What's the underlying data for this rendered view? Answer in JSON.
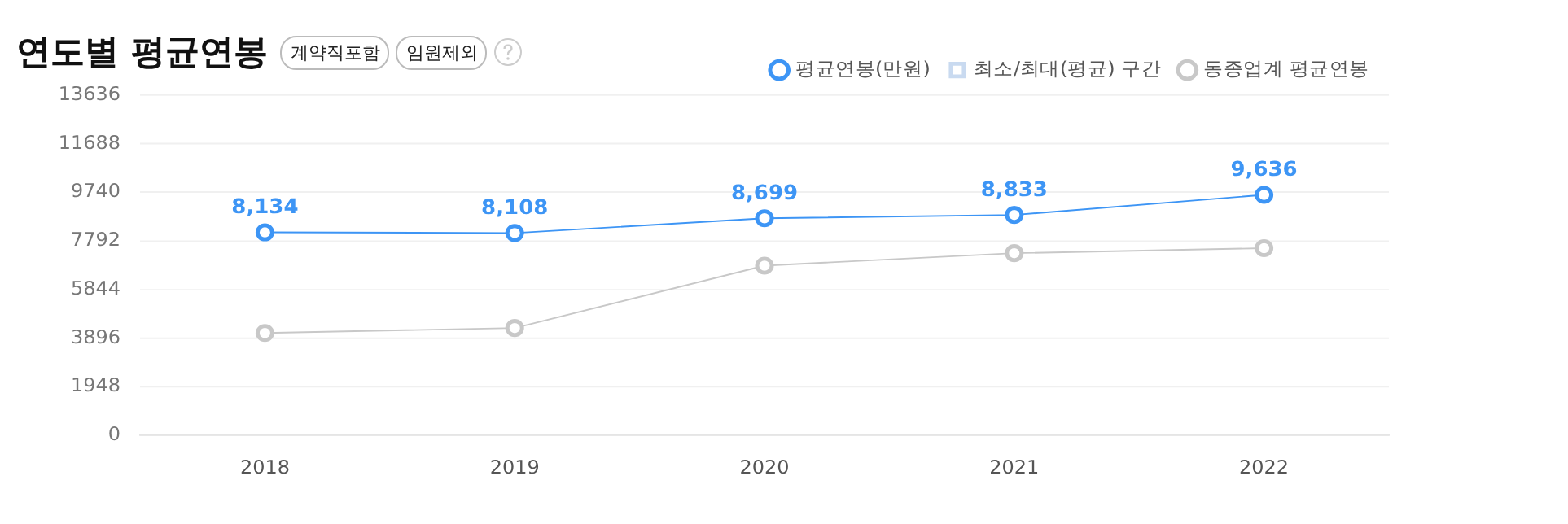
{
  "chart_data": {
    "type": "line",
    "title": "연도별 평균연봉",
    "annotations": [
      "계약직포함",
      "임원제외"
    ],
    "categories": [
      "2018",
      "2019",
      "2020",
      "2021",
      "2022"
    ],
    "series": [
      {
        "name": "평균연봉(만원)",
        "color": "#3d95f5",
        "values": [
          8134,
          8108,
          8699,
          8833,
          9636
        ],
        "value_labels": [
          "8,134",
          "8,108",
          "8,699",
          "8,833",
          "9,636"
        ]
      },
      {
        "name": "최소/최대(평균) 구간",
        "type": "area",
        "color": "#c9daf0",
        "values": [
          null,
          null,
          null,
          null,
          null
        ]
      },
      {
        "name": "동종업계 평균연봉",
        "color": "#c8c8c8",
        "values": [
          4100,
          4300,
          6800,
          7300,
          7500
        ]
      }
    ],
    "ylim": [
      0,
      13636
    ],
    "yticks": [
      0,
      1948,
      3896,
      5844,
      7792,
      9740,
      11688,
      13636
    ],
    "grid": "y",
    "legend": "top right",
    "marker": "circle",
    "line_style": "solid"
  }
}
